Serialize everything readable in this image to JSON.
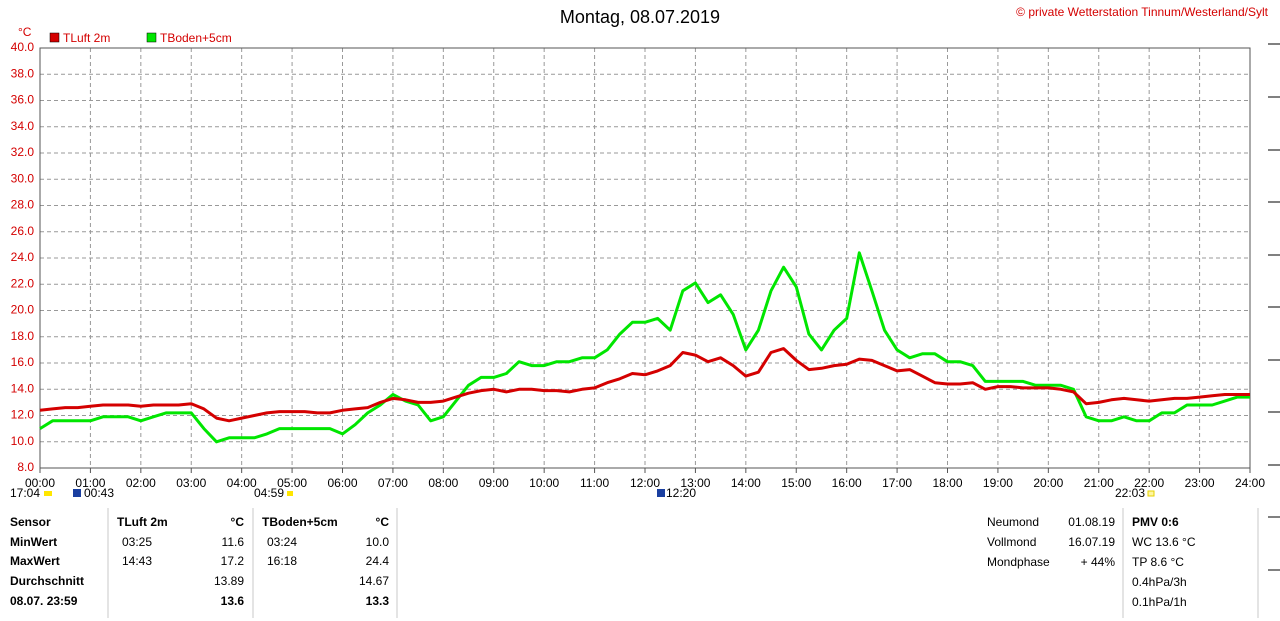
{
  "chart_data": {
    "type": "line",
    "title": "Montag, 08.07.2019",
    "copyright": "© private Wetterstation Tinnum/Westerland/Sylt",
    "y_label": "°C",
    "xlim": [
      0,
      24
    ],
    "ylim": [
      8,
      40
    ],
    "grid": true,
    "xticks": [
      {
        "value": 0,
        "label": "00:00"
      },
      {
        "value": 1,
        "label": "01:00"
      },
      {
        "value": 2,
        "label": "02:00"
      },
      {
        "value": 3,
        "label": "03:00"
      },
      {
        "value": 4,
        "label": "04:00"
      },
      {
        "value": 5,
        "label": "05:00"
      },
      {
        "value": 6,
        "label": "06:00"
      },
      {
        "value": 7,
        "label": "07:00"
      },
      {
        "value": 8,
        "label": "08:00"
      },
      {
        "value": 9,
        "label": "09:00"
      },
      {
        "value": 10,
        "label": "10:00"
      },
      {
        "value": 11,
        "label": "11:00"
      },
      {
        "value": 12,
        "label": "12:00"
      },
      {
        "value": 13,
        "label": "13:00"
      },
      {
        "value": 14,
        "label": "14:00"
      },
      {
        "value": 15,
        "label": "15:00"
      },
      {
        "value": 16,
        "label": "16:00"
      },
      {
        "value": 17,
        "label": "17:00"
      },
      {
        "value": 18,
        "label": "18:00"
      },
      {
        "value": 19,
        "label": "19:00"
      },
      {
        "value": 20,
        "label": "20:00"
      },
      {
        "value": 21,
        "label": "21:00"
      },
      {
        "value": 22,
        "label": "22:00"
      },
      {
        "value": 23,
        "label": "23:00"
      },
      {
        "value": 24,
        "label": "24:00"
      }
    ],
    "yticks": [
      {
        "value": 8,
        "label": "8.0"
      },
      {
        "value": 10,
        "label": "10.0"
      },
      {
        "value": 12,
        "label": "12.0"
      },
      {
        "value": 14,
        "label": "14.0"
      },
      {
        "value": 16,
        "label": "16.0"
      },
      {
        "value": 18,
        "label": "18.0"
      },
      {
        "value": 20,
        "label": "20.0"
      },
      {
        "value": 22,
        "label": "22.0"
      },
      {
        "value": 24,
        "label": "24.0"
      },
      {
        "value": 26,
        "label": "26.0"
      },
      {
        "value": 28,
        "label": "28.0"
      },
      {
        "value": 30,
        "label": "30.0"
      },
      {
        "value": 32,
        "label": "32.0"
      },
      {
        "value": 34,
        "label": "34.0"
      },
      {
        "value": 36,
        "label": "36.0"
      },
      {
        "value": 38,
        "label": "38.0"
      },
      {
        "value": 40,
        "label": "40.0"
      }
    ],
    "x": [
      0,
      0.25,
      0.5,
      0.75,
      1,
      1.25,
      1.5,
      1.75,
      2,
      2.25,
      2.5,
      2.75,
      3,
      3.25,
      3.5,
      3.75,
      4,
      4.25,
      4.5,
      4.75,
      5,
      5.25,
      5.5,
      5.75,
      6,
      6.25,
      6.5,
      6.75,
      7,
      7.25,
      7.5,
      7.75,
      8,
      8.25,
      8.5,
      8.75,
      9,
      9.25,
      9.5,
      9.75,
      10,
      10.25,
      10.5,
      10.75,
      11,
      11.25,
      11.5,
      11.75,
      12,
      12.25,
      12.5,
      12.75,
      13,
      13.25,
      13.5,
      13.75,
      14,
      14.25,
      14.5,
      14.75,
      15,
      15.25,
      15.5,
      15.75,
      16,
      16.25,
      16.5,
      16.75,
      17,
      17.25,
      17.5,
      17.75,
      18,
      18.25,
      18.5,
      18.75,
      19,
      19.25,
      19.5,
      19.75,
      20,
      20.25,
      20.5,
      20.75,
      21,
      21.25,
      21.5,
      21.75,
      22,
      22.25,
      22.5,
      22.75,
      23,
      23.25,
      23.5,
      23.75,
      24
    ],
    "series": [
      {
        "name": "TBoden+5cm",
        "color": "#00e600",
        "values": [
          11.0,
          11.6,
          11.6,
          11.6,
          11.6,
          11.9,
          11.9,
          11.9,
          11.6,
          11.9,
          12.2,
          12.2,
          12.2,
          11.0,
          10.0,
          10.3,
          10.3,
          10.3,
          10.6,
          11.0,
          11.0,
          11.0,
          11.0,
          11.0,
          10.6,
          11.3,
          12.2,
          12.8,
          13.6,
          13.1,
          12.8,
          11.6,
          11.9,
          13.1,
          14.3,
          14.9,
          14.9,
          15.2,
          16.1,
          15.8,
          15.8,
          16.1,
          16.1,
          16.4,
          16.4,
          17.0,
          18.2,
          19.1,
          19.1,
          19.4,
          18.5,
          21.5,
          22.1,
          20.6,
          21.2,
          19.7,
          17.0,
          18.5,
          21.5,
          23.3,
          21.8,
          18.2,
          17.0,
          18.5,
          19.4,
          24.4,
          21.5,
          18.5,
          17.0,
          16.4,
          16.7,
          16.7,
          16.1,
          16.1,
          15.8,
          14.6,
          14.6,
          14.6,
          14.6,
          14.3,
          14.3,
          14.3,
          14.0,
          11.9,
          11.6,
          11.6,
          11.9,
          11.6,
          11.6,
          12.2,
          12.2,
          12.8,
          12.8,
          12.8,
          13.1,
          13.4,
          13.4
        ]
      },
      {
        "name": "TLuft 2m",
        "color": "#d40000",
        "values": [
          12.4,
          12.5,
          12.6,
          12.6,
          12.7,
          12.8,
          12.8,
          12.8,
          12.7,
          12.8,
          12.8,
          12.8,
          12.9,
          12.5,
          11.8,
          11.6,
          11.8,
          12.0,
          12.2,
          12.3,
          12.3,
          12.3,
          12.2,
          12.2,
          12.4,
          12.5,
          12.6,
          13.0,
          13.3,
          13.2,
          13.0,
          13.0,
          13.1,
          13.4,
          13.7,
          13.9,
          14.0,
          13.8,
          14.0,
          14.0,
          13.9,
          13.9,
          13.8,
          14.0,
          14.1,
          14.5,
          14.8,
          15.2,
          15.1,
          15.4,
          15.8,
          16.8,
          16.6,
          16.1,
          16.4,
          15.8,
          15.0,
          15.3,
          16.8,
          17.1,
          16.2,
          15.5,
          15.6,
          15.8,
          15.9,
          16.3,
          16.2,
          15.8,
          15.4,
          15.5,
          15.0,
          14.5,
          14.4,
          14.4,
          14.5,
          14.0,
          14.2,
          14.2,
          14.1,
          14.1,
          14.1,
          14.0,
          13.8,
          12.9,
          13.0,
          13.2,
          13.3,
          13.2,
          13.1,
          13.2,
          13.3,
          13.3,
          13.4,
          13.5,
          13.6,
          13.6,
          13.6
        ]
      }
    ],
    "annotations": [
      "17:04",
      "00:43",
      "04:59",
      "12:20",
      "22:03"
    ]
  },
  "stats": {
    "headers": [
      "Sensor",
      "TLuft 2m",
      "°C",
      "TBoden+5cm",
      "°C"
    ],
    "rows": [
      {
        "label": "MinWert",
        "t1": "03:25",
        "v1": "11.6",
        "t2": "03:24",
        "v2": "10.0"
      },
      {
        "label": "MaxWert",
        "t1": "14:43",
        "v1": "17.2",
        "t2": "16:18",
        "v2": "24.4"
      },
      {
        "label": "Durchschnitt",
        "v1": "13.89",
        "v2": "14.67"
      },
      {
        "label": "08.07. 23:59",
        "v1": "13.6",
        "v2": "13.3"
      }
    ]
  },
  "moon": [
    [
      "Neumond",
      "01.08.19"
    ],
    [
      "Vollmond",
      "16.07.19"
    ],
    [
      "Mondphase",
      "+ 44%"
    ]
  ],
  "pmv": [
    "PMV 0:6",
    "WC 13.6 °C",
    "TP 8.6 °C",
    "0.4hPa/3h",
    "0.1hPa/1h"
  ]
}
